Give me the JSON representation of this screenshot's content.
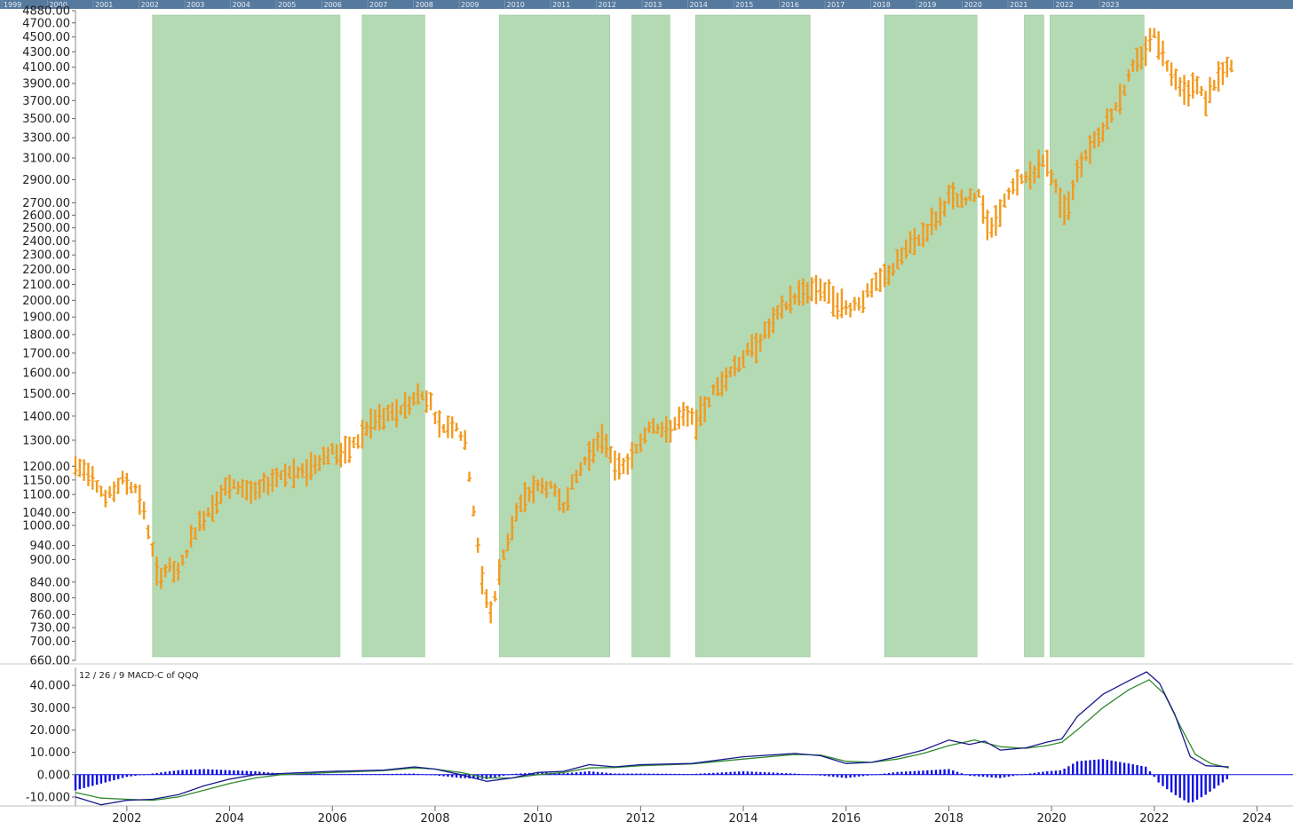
{
  "navigator": {
    "years": [
      "1999",
      "2000",
      "2001",
      "2002",
      "2003",
      "2004",
      "2005",
      "2006",
      "2007",
      "2008",
      "2009",
      "2010",
      "2011",
      "2012",
      "2013",
      "2014",
      "2015",
      "2016",
      "2017",
      "2018",
      "2019",
      "2020",
      "2021",
      "2022",
      "2023"
    ]
  },
  "colors": {
    "price": "#f29a1f",
    "shade": "#b4dab4",
    "macd_line": "#1a1a8c",
    "signal_line": "#2f8a2f",
    "histogram": "#1010e0",
    "navigator": "#56799e"
  },
  "chart_data": [
    {
      "type": "bar",
      "subtype": "ohlc-monthly",
      "yscale": "log",
      "ylim": [
        660,
        4880
      ],
      "xlim": [
        2001.0,
        2024.7
      ],
      "yticks": [
        4880,
        4700,
        4500,
        4300,
        4100,
        3900,
        3700,
        3500,
        3300,
        3100,
        2900,
        2700,
        2600,
        2500,
        2400,
        2300,
        2200,
        2100,
        2000,
        1900,
        1800,
        1700,
        1600,
        1500,
        1400,
        1300,
        1200,
        1150,
        1100,
        1040,
        1000,
        940,
        900,
        840,
        800,
        760,
        730,
        700,
        660
      ],
      "ytick_labels": [
        "4880.00",
        "4700.00",
        "4500.00",
        "4300.00",
        "4100.00",
        "3900.00",
        "3700.00",
        "3500.00",
        "3300.00",
        "3100.00",
        "2900.00",
        "2700.00",
        "2600.00",
        "2500.00",
        "2400.00",
        "2300.00",
        "2200.00",
        "2100.00",
        "2000.00",
        "1900.00",
        "1800.00",
        "1700.00",
        "1600.00",
        "1500.00",
        "1400.00",
        "1300.00",
        "1200.00",
        "1150.00",
        "1100.00",
        "1040.00",
        "1000.00",
        "940.00",
        "900.00",
        "840.00",
        "800.00",
        "760.00",
        "730.00",
        "700.00",
        "660.00"
      ],
      "shaded_periods": [
        [
          2002.5,
          2006.15
        ],
        [
          2006.58,
          2007.8
        ],
        [
          2009.25,
          2011.4
        ],
        [
          2011.83,
          2012.57
        ],
        [
          2013.07,
          2015.3
        ],
        [
          2016.75,
          2018.55
        ],
        [
          2019.47,
          2019.85
        ],
        [
          2019.97,
          2021.8
        ]
      ],
      "series_points": [
        [
          2001.0,
          1200
        ],
        [
          2001.3,
          1180
        ],
        [
          2001.6,
          1080
        ],
        [
          2001.9,
          1150
        ],
        [
          2002.2,
          1120
        ],
        [
          2002.4,
          1000
        ],
        [
          2002.6,
          850
        ],
        [
          2002.8,
          880
        ],
        [
          2003.0,
          860
        ],
        [
          2003.3,
          980
        ],
        [
          2003.6,
          1050
        ],
        [
          2003.9,
          1120
        ],
        [
          2004.2,
          1130
        ],
        [
          2004.5,
          1100
        ],
        [
          2004.8,
          1150
        ],
        [
          2005.1,
          1180
        ],
        [
          2005.4,
          1170
        ],
        [
          2005.7,
          1220
        ],
        [
          2006.0,
          1260
        ],
        [
          2006.2,
          1240
        ],
        [
          2006.5,
          1300
        ],
        [
          2006.8,
          1380
        ],
        [
          2007.1,
          1400
        ],
        [
          2007.4,
          1440
        ],
        [
          2007.7,
          1500
        ],
        [
          2007.9,
          1470
        ],
        [
          2008.1,
          1350
        ],
        [
          2008.4,
          1370
        ],
        [
          2008.6,
          1280
        ],
        [
          2008.75,
          1050
        ],
        [
          2008.9,
          850
        ],
        [
          2009.1,
          760
        ],
        [
          2009.3,
          900
        ],
        [
          2009.6,
          1050
        ],
        [
          2009.9,
          1120
        ],
        [
          2010.2,
          1130
        ],
        [
          2010.5,
          1070
        ],
        [
          2010.8,
          1180
        ],
        [
          2011.1,
          1280
        ],
        [
          2011.3,
          1300
        ],
        [
          2011.6,
          1180
        ],
        [
          2011.9,
          1250
        ],
        [
          2012.2,
          1380
        ],
        [
          2012.5,
          1330
        ],
        [
          2012.8,
          1400
        ],
        [
          2013.1,
          1380
        ],
        [
          2013.4,
          1500
        ],
        [
          2013.7,
          1600
        ],
        [
          2014.0,
          1680
        ],
        [
          2014.3,
          1760
        ],
        [
          2014.6,
          1880
        ],
        [
          2014.9,
          2000
        ],
        [
          2015.2,
          2060
        ],
        [
          2015.5,
          2080
        ],
        [
          2015.8,
          2000
        ],
        [
          2016.0,
          1950
        ],
        [
          2016.3,
          2000
        ],
        [
          2016.6,
          2100
        ],
        [
          2016.9,
          2200
        ],
        [
          2017.2,
          2350
        ],
        [
          2017.5,
          2450
        ],
        [
          2017.8,
          2600
        ],
        [
          2018.0,
          2750
        ],
        [
          2018.3,
          2700
        ],
        [
          2018.6,
          2800
        ],
        [
          2018.8,
          2450
        ],
        [
          2019.0,
          2650
        ],
        [
          2019.3,
          2850
        ],
        [
          2019.6,
          2950
        ],
        [
          2019.9,
          3100
        ],
        [
          2020.1,
          2800
        ],
        [
          2020.3,
          2600
        ],
        [
          2020.5,
          3000
        ],
        [
          2020.8,
          3250
        ],
        [
          2021.0,
          3400
        ],
        [
          2021.3,
          3700
        ],
        [
          2021.6,
          4100
        ],
        [
          2021.9,
          4400
        ],
        [
          2022.0,
          4600
        ],
        [
          2022.2,
          4200
        ],
        [
          2022.4,
          4000
        ],
        [
          2022.6,
          3800
        ],
        [
          2022.8,
          3900
        ],
        [
          2023.0,
          3700
        ],
        [
          2023.2,
          3950
        ],
        [
          2023.5,
          4100
        ]
      ]
    },
    {
      "type": "line",
      "title": "12 / 26 / 9 MACD-C of QQQ",
      "ylim": [
        -14000,
        48000
      ],
      "yticks": [
        40000,
        30000,
        20000,
        10000,
        0,
        -10000
      ],
      "ytick_labels": [
        "40.000",
        "30.000",
        "20.000",
        "10.000",
        "0.000",
        "-10.000"
      ],
      "xlim": [
        2001.0,
        2024.7
      ],
      "xticks": [
        2002,
        2004,
        2006,
        2008,
        2010,
        2012,
        2014,
        2016,
        2018,
        2020,
        2022,
        2024
      ],
      "xtick_labels": [
        "2002",
        "2004",
        "2006",
        "2008",
        "2010",
        "2012",
        "2014",
        "2016",
        "2018",
        "2020",
        "2022",
        "2024"
      ],
      "series": [
        {
          "role": "macd",
          "points": [
            [
              2001.0,
              -10000
            ],
            [
              2001.5,
              -13500
            ],
            [
              2002.0,
              -11500
            ],
            [
              2002.5,
              -11000
            ],
            [
              2003.0,
              -9000
            ],
            [
              2003.5,
              -5000
            ],
            [
              2004.0,
              -2000
            ],
            [
              2004.5,
              0
            ],
            [
              2005.0,
              500
            ],
            [
              2006.0,
              1500
            ],
            [
              2007.0,
              2000
            ],
            [
              2007.6,
              3500
            ],
            [
              2008.0,
              2500
            ],
            [
              2008.5,
              0
            ],
            [
              2009.0,
              -3000
            ],
            [
              2009.5,
              -1500
            ],
            [
              2010.0,
              1000
            ],
            [
              2010.5,
              1500
            ],
            [
              2011.0,
              4500
            ],
            [
              2011.5,
              3500
            ],
            [
              2012.0,
              4500
            ],
            [
              2013.0,
              5000
            ],
            [
              2014.0,
              8000
            ],
            [
              2015.0,
              9500
            ],
            [
              2015.5,
              8500
            ],
            [
              2016.0,
              5000
            ],
            [
              2016.5,
              5500
            ],
            [
              2017.0,
              8000
            ],
            [
              2017.5,
              11000
            ],
            [
              2018.0,
              15500
            ],
            [
              2018.4,
              13500
            ],
            [
              2018.7,
              15000
            ],
            [
              2019.0,
              11000
            ],
            [
              2019.5,
              12000
            ],
            [
              2019.9,
              14500
            ],
            [
              2020.2,
              16000
            ],
            [
              2020.5,
              26000
            ],
            [
              2021.0,
              36000
            ],
            [
              2021.5,
              42000
            ],
            [
              2021.85,
              46000
            ],
            [
              2022.1,
              41000
            ],
            [
              2022.4,
              27000
            ],
            [
              2022.7,
              8000
            ],
            [
              2023.0,
              4000
            ],
            [
              2023.45,
              3500
            ]
          ]
        },
        {
          "role": "signal",
          "points": [
            [
              2001.0,
              -8000
            ],
            [
              2001.5,
              -10500
            ],
            [
              2002.0,
              -11000
            ],
            [
              2002.5,
              -11500
            ],
            [
              2003.0,
              -10000
            ],
            [
              2003.5,
              -7000
            ],
            [
              2004.0,
              -4000
            ],
            [
              2004.5,
              -1500
            ],
            [
              2005.0,
              0
            ],
            [
              2006.0,
              1000
            ],
            [
              2007.0,
              1800
            ],
            [
              2007.6,
              3000
            ],
            [
              2008.0,
              2500
            ],
            [
              2008.5,
              1000
            ],
            [
              2009.0,
              -1500
            ],
            [
              2009.5,
              -1500
            ],
            [
              2010.0,
              0
            ],
            [
              2010.5,
              1000
            ],
            [
              2011.0,
              3000
            ],
            [
              2011.5,
              3200
            ],
            [
              2012.0,
              4000
            ],
            [
              2013.0,
              4800
            ],
            [
              2014.0,
              7000
            ],
            [
              2015.0,
              9000
            ],
            [
              2015.5,
              8800
            ],
            [
              2016.0,
              6000
            ],
            [
              2016.5,
              5500
            ],
            [
              2017.0,
              7000
            ],
            [
              2017.5,
              9500
            ],
            [
              2018.0,
              13000
            ],
            [
              2018.5,
              15500
            ],
            [
              2019.0,
              12500
            ],
            [
              2019.5,
              11800
            ],
            [
              2019.9,
              13000
            ],
            [
              2020.2,
              14500
            ],
            [
              2020.5,
              20000
            ],
            [
              2021.0,
              30000
            ],
            [
              2021.5,
              38000
            ],
            [
              2021.9,
              42500
            ],
            [
              2022.2,
              36000
            ],
            [
              2022.5,
              22000
            ],
            [
              2022.8,
              9000
            ],
            [
              2023.1,
              5000
            ],
            [
              2023.45,
              3000
            ]
          ]
        },
        {
          "role": "histogram",
          "points": [
            [
              2001.0,
              -7000
            ],
            [
              2001.5,
              -4000
            ],
            [
              2002.0,
              -1000
            ],
            [
              2002.5,
              500
            ],
            [
              2003.0,
              2000
            ],
            [
              2003.5,
              2500
            ],
            [
              2004.0,
              2000
            ],
            [
              2004.5,
              1500
            ],
            [
              2005.0,
              500
            ],
            [
              2006.0,
              200
            ],
            [
              2007.0,
              300
            ],
            [
              2007.6,
              500
            ],
            [
              2008.0,
              -300
            ],
            [
              2008.5,
              -1500
            ],
            [
              2009.0,
              -2000
            ],
            [
              2009.5,
              300
            ],
            [
              2010.0,
              1000
            ],
            [
              2010.5,
              600
            ],
            [
              2011.0,
              1500
            ],
            [
              2011.5,
              500
            ],
            [
              2012.0,
              500
            ],
            [
              2013.0,
              300
            ],
            [
              2014.0,
              1500
            ],
            [
              2015.0,
              500
            ],
            [
              2015.5,
              -400
            ],
            [
              2016.0,
              -1500
            ],
            [
              2016.5,
              -200
            ],
            [
              2017.0,
              1200
            ],
            [
              2017.5,
              1800
            ],
            [
              2018.0,
              2500
            ],
            [
              2018.4,
              -500
            ],
            [
              2018.7,
              -1000
            ],
            [
              2019.0,
              -1500
            ],
            [
              2019.5,
              300
            ],
            [
              2019.9,
              1500
            ],
            [
              2020.2,
              2000
            ],
            [
              2020.5,
              6000
            ],
            [
              2021.0,
              7000
            ],
            [
              2021.5,
              5000
            ],
            [
              2021.85,
              3500
            ],
            [
              2022.1,
              -4000
            ],
            [
              2022.4,
              -9000
            ],
            [
              2022.7,
              -13000
            ],
            [
              2023.0,
              -9000
            ],
            [
              2023.45,
              -1500
            ]
          ]
        }
      ]
    }
  ]
}
